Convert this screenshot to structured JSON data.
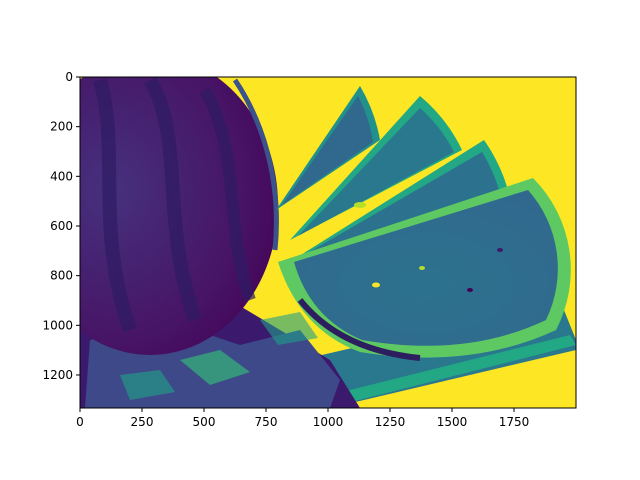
{
  "chart_data": {
    "type": "image",
    "colormap": "viridis",
    "colors": {
      "low": "#440154",
      "low_mid": "#3b528b",
      "mid": "#21918c",
      "high_mid": "#5ec962",
      "high": "#fde725",
      "axes": "#000000",
      "background": "#ffffff"
    },
    "image_width": 2000,
    "image_height": 1333,
    "xlim": [
      0,
      2000
    ],
    "ylim": [
      1333,
      0
    ],
    "y_inverted": true,
    "grid": false,
    "legend": "none",
    "x_ticks": [
      0,
      250,
      500,
      750,
      1000,
      1250,
      1500,
      1750
    ],
    "y_ticks": [
      0,
      200,
      400,
      600,
      800,
      1000,
      1200
    ],
    "x_tick_labels": [
      "0",
      "250",
      "500",
      "750",
      "1000",
      "1250",
      "1500",
      "1750"
    ],
    "y_tick_labels": [
      "0",
      "200",
      "400",
      "600",
      "800",
      "1000",
      "1200"
    ],
    "title": "",
    "xlabel": "",
    "ylabel": ""
  }
}
